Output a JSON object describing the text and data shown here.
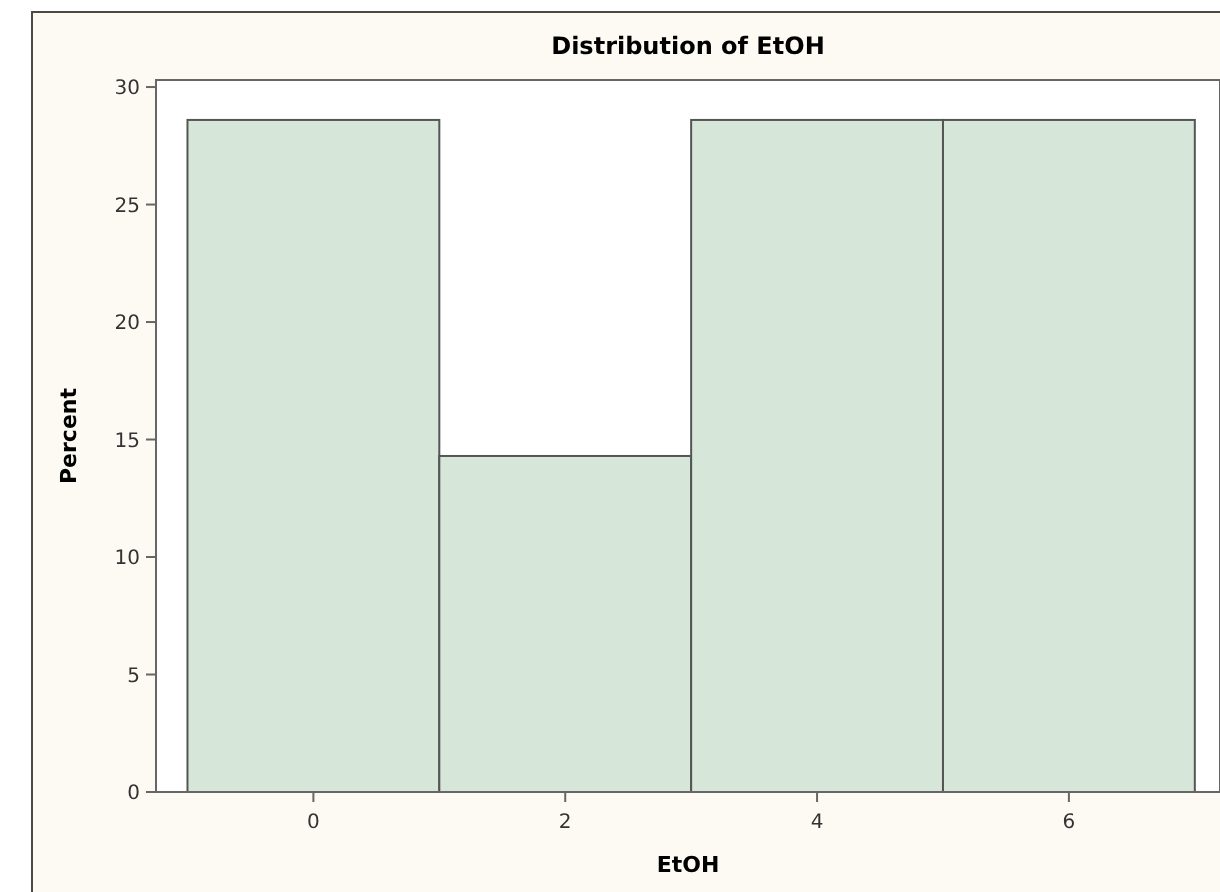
{
  "chart_data": {
    "type": "histogram",
    "title": "Distribution of EtOH",
    "xlabel": "EtOH",
    "ylabel": "Percent",
    "bins": [
      -1,
      1,
      3,
      5,
      7
    ],
    "values": [
      28.6,
      14.3,
      28.6,
      28.6
    ],
    "color": "#d6e6d9",
    "xlim": [
      -1.25,
      7.2
    ],
    "xticks": [
      0,
      2,
      4,
      6
    ],
    "ylim": [
      0,
      30.3
    ],
    "yticks": [
      0,
      5,
      10,
      15,
      20,
      25,
      30
    ],
    "grid": false
  }
}
